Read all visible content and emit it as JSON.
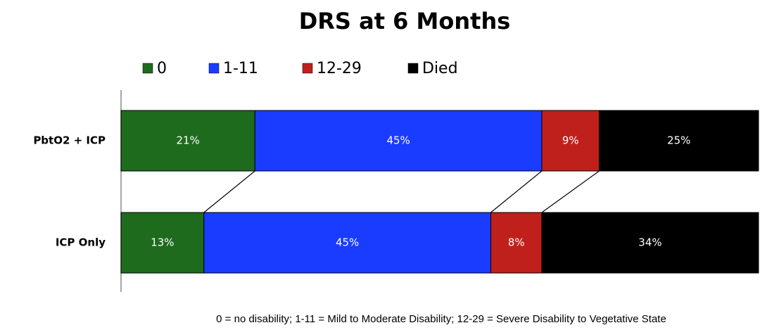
{
  "chart_data": {
    "type": "stacked_bar_horizontal",
    "title": "DRS at 6 Months",
    "categories": [
      "PbtO2 + ICP",
      "ICP Only"
    ],
    "series": [
      {
        "name": "0",
        "color": "#1e6b1e",
        "values": [
          21,
          13
        ],
        "value_labels": [
          "21%",
          "13%"
        ]
      },
      {
        "name": "1-11",
        "color": "#1a3cff",
        "values": [
          45,
          45
        ],
        "value_labels": [
          "45%",
          "45%"
        ]
      },
      {
        "name": "12-29",
        "color": "#c0201b",
        "values": [
          9,
          8
        ],
        "value_labels": [
          "9%",
          "8%"
        ]
      },
      {
        "name": "Died",
        "color": "#000000",
        "values": [
          25,
          34
        ],
        "value_labels": [
          "25%",
          "34%"
        ]
      }
    ],
    "xlim": [
      0,
      100
    ],
    "legend": "top",
    "annotation": "0 = no disability; 1-11 = Mild to Moderate Disability; 12-29 = Severe Disability to Vegetative State"
  }
}
